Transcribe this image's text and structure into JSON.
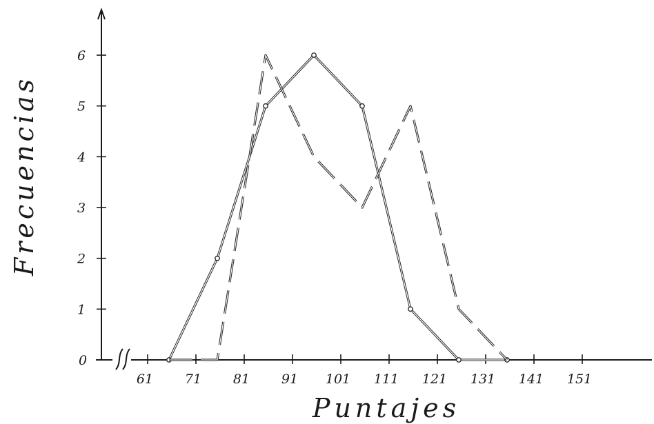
{
  "chart_data": {
    "type": "line",
    "title": "",
    "xlabel": "Puntajes",
    "ylabel": "Frecuencias",
    "x_tick_labels": [
      "61",
      "71",
      "81",
      "91",
      "101",
      "111",
      "121",
      "131",
      "141",
      "151"
    ],
    "y_tick_labels": [
      "0",
      "1",
      "2",
      "3",
      "4",
      "5",
      "6"
    ],
    "ylim": [
      0,
      6.8
    ],
    "xlim": [
      52,
      166
    ],
    "x_axis_break": true,
    "grid": false,
    "series": [
      {
        "style": "solid",
        "points": [
          {
            "x": 66,
            "y": 0
          },
          {
            "x": 76,
            "y": 2
          },
          {
            "x": 86,
            "y": 5
          },
          {
            "x": 96,
            "y": 6
          },
          {
            "x": 106,
            "y": 5
          },
          {
            "x": 116,
            "y": 1
          },
          {
            "x": 126,
            "y": 0
          },
          {
            "x": 136,
            "y": 0
          }
        ]
      },
      {
        "style": "dashed",
        "points": [
          {
            "x": 66,
            "y": 0
          },
          {
            "x": 76,
            "y": 0
          },
          {
            "x": 86,
            "y": 6
          },
          {
            "x": 96,
            "y": 4
          },
          {
            "x": 106,
            "y": 3
          },
          {
            "x": 116,
            "y": 5
          },
          {
            "x": 126,
            "y": 1
          },
          {
            "x": 136,
            "y": 0
          }
        ]
      }
    ]
  }
}
